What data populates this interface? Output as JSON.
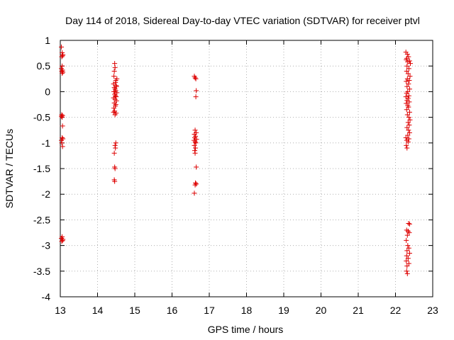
{
  "chart_data": {
    "type": "scatter",
    "title": "Day 114 of 2018, Sidereal Day-to-day VTEC variation (SDTVAR) for receiver ptvl",
    "xlabel": "GPS time / hours",
    "ylabel": "SDTVAR / TECUs",
    "xlim": [
      13,
      23
    ],
    "ylim": [
      -4,
      1
    ],
    "xticks": [
      "13",
      "14",
      "15",
      "16",
      "17",
      "18",
      "19",
      "20",
      "21",
      "22",
      "23"
    ],
    "yticks": [
      "1",
      "0.5",
      "0",
      "-0.5",
      "-1",
      "-1.5",
      "-2",
      "-2.5",
      "-3",
      "-3.5",
      "-4"
    ],
    "grid": true,
    "marker": "plus",
    "point_color": "#dd0000",
    "points": [
      [
        13.03,
        0.87
      ],
      [
        13.05,
        0.76
      ],
      [
        13.06,
        0.7
      ],
      [
        13.04,
        0.68
      ],
      [
        13.07,
        0.72
      ],
      [
        13.05,
        0.5
      ],
      [
        13.03,
        0.45
      ],
      [
        13.06,
        0.42
      ],
      [
        13.04,
        0.4
      ],
      [
        13.07,
        0.38
      ],
      [
        13.05,
        0.36
      ],
      [
        13.04,
        -0.45
      ],
      [
        13.06,
        -0.47
      ],
      [
        13.05,
        -0.5
      ],
      [
        13.03,
        -0.48
      ],
      [
        13.06,
        -0.67
      ],
      [
        13.05,
        -0.9
      ],
      [
        13.07,
        -0.92
      ],
      [
        13.03,
        -0.95
      ],
      [
        13.04,
        -1.0
      ],
      [
        13.06,
        -1.07
      ],
      [
        13.05,
        -2.83
      ],
      [
        13.03,
        -2.86
      ],
      [
        13.07,
        -2.88
      ],
      [
        13.06,
        -2.9
      ],
      [
        13.04,
        -2.92
      ],
      [
        14.46,
        0.55
      ],
      [
        14.47,
        0.47
      ],
      [
        14.45,
        0.4
      ],
      [
        14.44,
        0.3
      ],
      [
        14.49,
        0.22
      ],
      [
        14.52,
        0.25
      ],
      [
        14.48,
        0.18
      ],
      [
        14.43,
        0.15
      ],
      [
        14.5,
        0.12
      ],
      [
        14.51,
        0.1
      ],
      [
        14.45,
        0.08
      ],
      [
        14.47,
        0.05
      ],
      [
        14.49,
        0.02
      ],
      [
        14.44,
        0.0
      ],
      [
        14.52,
        -0.02
      ],
      [
        14.46,
        -0.05
      ],
      [
        14.48,
        -0.08
      ],
      [
        14.5,
        -0.1
      ],
      [
        14.43,
        -0.12
      ],
      [
        14.47,
        -0.15
      ],
      [
        14.51,
        -0.18
      ],
      [
        14.45,
        -0.22
      ],
      [
        14.49,
        -0.25
      ],
      [
        14.48,
        -0.28
      ],
      [
        14.44,
        -0.32
      ],
      [
        14.46,
        -0.38
      ],
      [
        14.43,
        -0.4
      ],
      [
        14.5,
        -0.42
      ],
      [
        14.47,
        -0.45
      ],
      [
        14.49,
        -1.0
      ],
      [
        14.47,
        -1.05
      ],
      [
        14.48,
        -1.1
      ],
      [
        14.45,
        -1.2
      ],
      [
        14.46,
        -1.47
      ],
      [
        14.47,
        -1.5
      ],
      [
        14.45,
        -1.72
      ],
      [
        14.46,
        -1.75
      ],
      [
        16.6,
        0.3
      ],
      [
        16.62,
        0.27
      ],
      [
        16.64,
        0.25
      ],
      [
        16.65,
        0.02
      ],
      [
        16.64,
        -0.1
      ],
      [
        16.62,
        -0.75
      ],
      [
        16.65,
        -0.8
      ],
      [
        16.6,
        -0.83
      ],
      [
        16.63,
        -0.87
      ],
      [
        16.61,
        -0.9
      ],
      [
        16.66,
        -0.93
      ],
      [
        16.59,
        -0.95
      ],
      [
        16.62,
        -0.98
      ],
      [
        16.64,
        -1.0
      ],
      [
        16.6,
        -1.05
      ],
      [
        16.63,
        -1.1
      ],
      [
        16.61,
        -1.15
      ],
      [
        16.62,
        -1.2
      ],
      [
        16.65,
        -1.47
      ],
      [
        16.63,
        -1.78
      ],
      [
        16.65,
        -1.8
      ],
      [
        16.62,
        -1.82
      ],
      [
        16.6,
        -1.98
      ],
      [
        22.28,
        0.77
      ],
      [
        22.32,
        0.73
      ],
      [
        22.3,
        0.65
      ],
      [
        22.35,
        0.68
      ],
      [
        22.29,
        0.62
      ],
      [
        22.38,
        0.6
      ],
      [
        22.33,
        0.58
      ],
      [
        22.4,
        0.55
      ],
      [
        22.31,
        0.5
      ],
      [
        22.36,
        0.45
      ],
      [
        22.3,
        0.4
      ],
      [
        22.34,
        0.35
      ],
      [
        22.39,
        0.3
      ],
      [
        22.32,
        0.25
      ],
      [
        22.37,
        0.22
      ],
      [
        22.29,
        0.2
      ],
      [
        22.35,
        0.15
      ],
      [
        22.31,
        0.1
      ],
      [
        22.38,
        0.05
      ],
      [
        22.33,
        0.0
      ],
      [
        22.3,
        -0.03
      ],
      [
        22.36,
        -0.08
      ],
      [
        22.28,
        -0.1
      ],
      [
        22.34,
        -0.13
      ],
      [
        22.31,
        -0.17
      ],
      [
        22.37,
        -0.2
      ],
      [
        22.29,
        -0.23
      ],
      [
        22.33,
        -0.27
      ],
      [
        22.35,
        -0.3
      ],
      [
        22.3,
        -0.35
      ],
      [
        22.38,
        -0.4
      ],
      [
        22.32,
        -0.45
      ],
      [
        22.36,
        -0.5
      ],
      [
        22.39,
        -0.55
      ],
      [
        22.34,
        -0.6
      ],
      [
        22.37,
        -0.65
      ],
      [
        22.31,
        -0.7
      ],
      [
        22.35,
        -0.75
      ],
      [
        22.38,
        -0.8
      ],
      [
        22.33,
        -0.85
      ],
      [
        22.28,
        -0.9
      ],
      [
        22.36,
        -0.92
      ],
      [
        22.3,
        -0.95
      ],
      [
        22.34,
        -0.98
      ],
      [
        22.29,
        -1.05
      ],
      [
        22.31,
        -1.1
      ],
      [
        22.35,
        -2.57
      ],
      [
        22.38,
        -2.58
      ],
      [
        22.3,
        -2.7
      ],
      [
        22.34,
        -2.72
      ],
      [
        22.37,
        -2.75
      ],
      [
        22.32,
        -2.8
      ],
      [
        22.29,
        -2.9
      ],
      [
        22.33,
        -3.0
      ],
      [
        22.36,
        -3.05
      ],
      [
        22.31,
        -3.1
      ],
      [
        22.38,
        -3.15
      ],
      [
        22.3,
        -3.2
      ],
      [
        22.34,
        -3.25
      ],
      [
        22.29,
        -3.3
      ],
      [
        22.36,
        -3.35
      ],
      [
        22.31,
        -3.4
      ],
      [
        22.3,
        -3.5
      ],
      [
        22.32,
        -3.55
      ]
    ]
  }
}
